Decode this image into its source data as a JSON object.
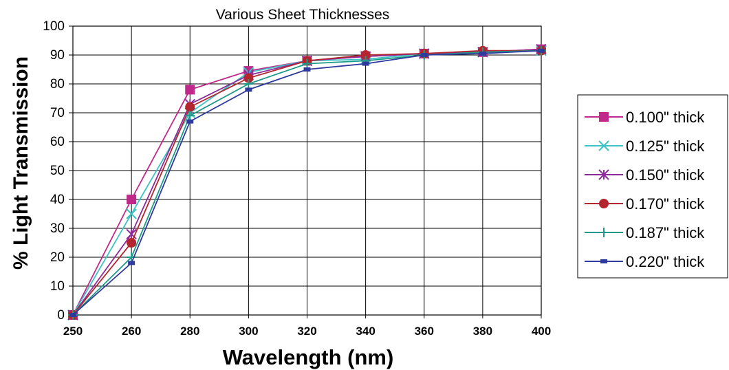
{
  "chart_data": {
    "type": "line",
    "title": "Various Sheet Thicknesses",
    "xlabel": "Wavelength (nm)",
    "ylabel": "% Light Transmission",
    "x": [
      250,
      260,
      280,
      300,
      320,
      340,
      360,
      380,
      400
    ],
    "x_tick_labels": [
      "250",
      "260",
      "280",
      "300",
      "320",
      "340",
      "360",
      "380",
      "400"
    ],
    "y_ticks": [
      0,
      10,
      20,
      30,
      40,
      50,
      60,
      70,
      80,
      90,
      100
    ],
    "ylim": [
      0,
      100
    ],
    "grid": true,
    "legend_position": "right",
    "series": [
      {
        "name": "0.100\" thick",
        "color": "#c0288a",
        "marker": "square",
        "values": [
          0,
          40,
          78,
          84.5,
          88,
          89.5,
          90.5,
          91,
          92
        ]
      },
      {
        "name": "0.125\" thick",
        "color": "#3cc4c4",
        "marker": "x",
        "values": [
          0,
          35,
          70,
          84,
          88,
          88.5,
          90.5,
          91,
          91.5
        ]
      },
      {
        "name": "0.150\" thick",
        "color": "#8e2a9a",
        "marker": "star",
        "values": [
          0,
          28,
          73,
          83,
          88,
          89.5,
          90.5,
          91,
          92
        ]
      },
      {
        "name": "0.170\" thick",
        "color": "#b3262f",
        "marker": "circle",
        "values": [
          0,
          25,
          72,
          82,
          88,
          90,
          90.5,
          91.5,
          91.5
        ]
      },
      {
        "name": "0.187\" thick",
        "color": "#1f9a88",
        "marker": "plus",
        "values": [
          0,
          20,
          69,
          80,
          87,
          88,
          90,
          91,
          91.5
        ]
      },
      {
        "name": "0.220\" thick",
        "color": "#2e3a9c",
        "marker": "dash",
        "values": [
          0,
          18,
          67,
          78,
          85,
          87,
          90,
          90.5,
          91.5
        ]
      }
    ]
  }
}
